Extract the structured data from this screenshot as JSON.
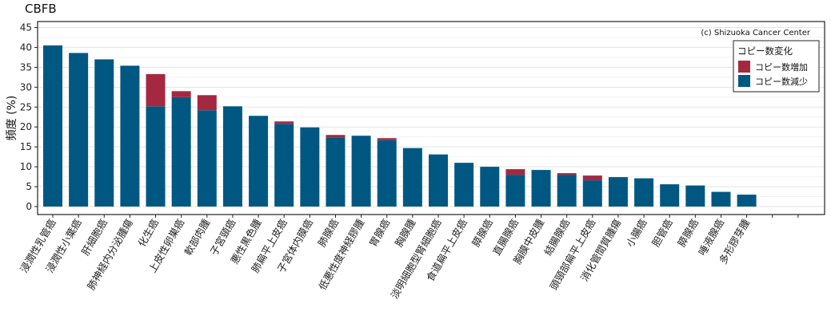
{
  "chart_data": {
    "type": "bar",
    "stacked": true,
    "title": "CBFB",
    "ylabel": "頻度 (%)",
    "xlabel": "",
    "ylim": [
      -2,
      46.5
    ],
    "yticks": [
      0,
      5,
      10,
      15,
      20,
      25,
      30,
      35,
      40,
      45
    ],
    "grid": true,
    "legend_position": "top-right",
    "credit": "(c) Shizuoka Cancer Center",
    "legend_title": "コピー数変化",
    "categories": [
      "浸潤性乳管癌",
      "浸潤性小葉癌",
      "肝細胞癌",
      "肺神経内分泌腫瘍",
      "化生癌",
      "上皮性卵巣癌",
      "軟部肉腫",
      "子宮頸癌",
      "悪性黒色腫",
      "肺扁平上皮癌",
      "子宮体内膜癌",
      "肺腺癌",
      "低悪性度神経膠腫",
      "胃腺癌",
      "胸腺腫",
      "淡明細胞型腎細胞癌",
      "食道扁平上皮癌",
      "膵腺癌",
      "直腸腺癌",
      "胸膜中皮腫",
      "結腸腺癌",
      "頭頸部扁平上皮癌",
      "消化管間質腫瘍",
      "小腸癌",
      "胆管癌",
      "膵腺癌",
      "唾液腺癌",
      "多形膠芽腫",
      "",
      ""
    ],
    "series": [
      {
        "name": "コピー数減少",
        "color": "#005882",
        "values": [
          40.5,
          38.6,
          37.0,
          35.4,
          25.2,
          27.5,
          24.2,
          25.2,
          22.8,
          20.8,
          19.9,
          17.4,
          17.8,
          16.7,
          14.7,
          13.1,
          11.0,
          10.0,
          8.0,
          9.2,
          8.0,
          6.6,
          7.4,
          7.1,
          5.6,
          5.3,
          3.7,
          3.0,
          0,
          0
        ]
      },
      {
        "name": "コピー数増加",
        "color": "#A52841",
        "values": [
          0,
          0,
          0,
          0,
          8.1,
          1.5,
          3.8,
          0,
          0,
          0.6,
          0,
          0.6,
          0,
          0.5,
          0,
          0,
          0,
          0,
          1.4,
          0,
          0.4,
          1.2,
          0,
          0,
          0,
          0,
          0,
          0,
          0,
          0
        ]
      }
    ]
  }
}
